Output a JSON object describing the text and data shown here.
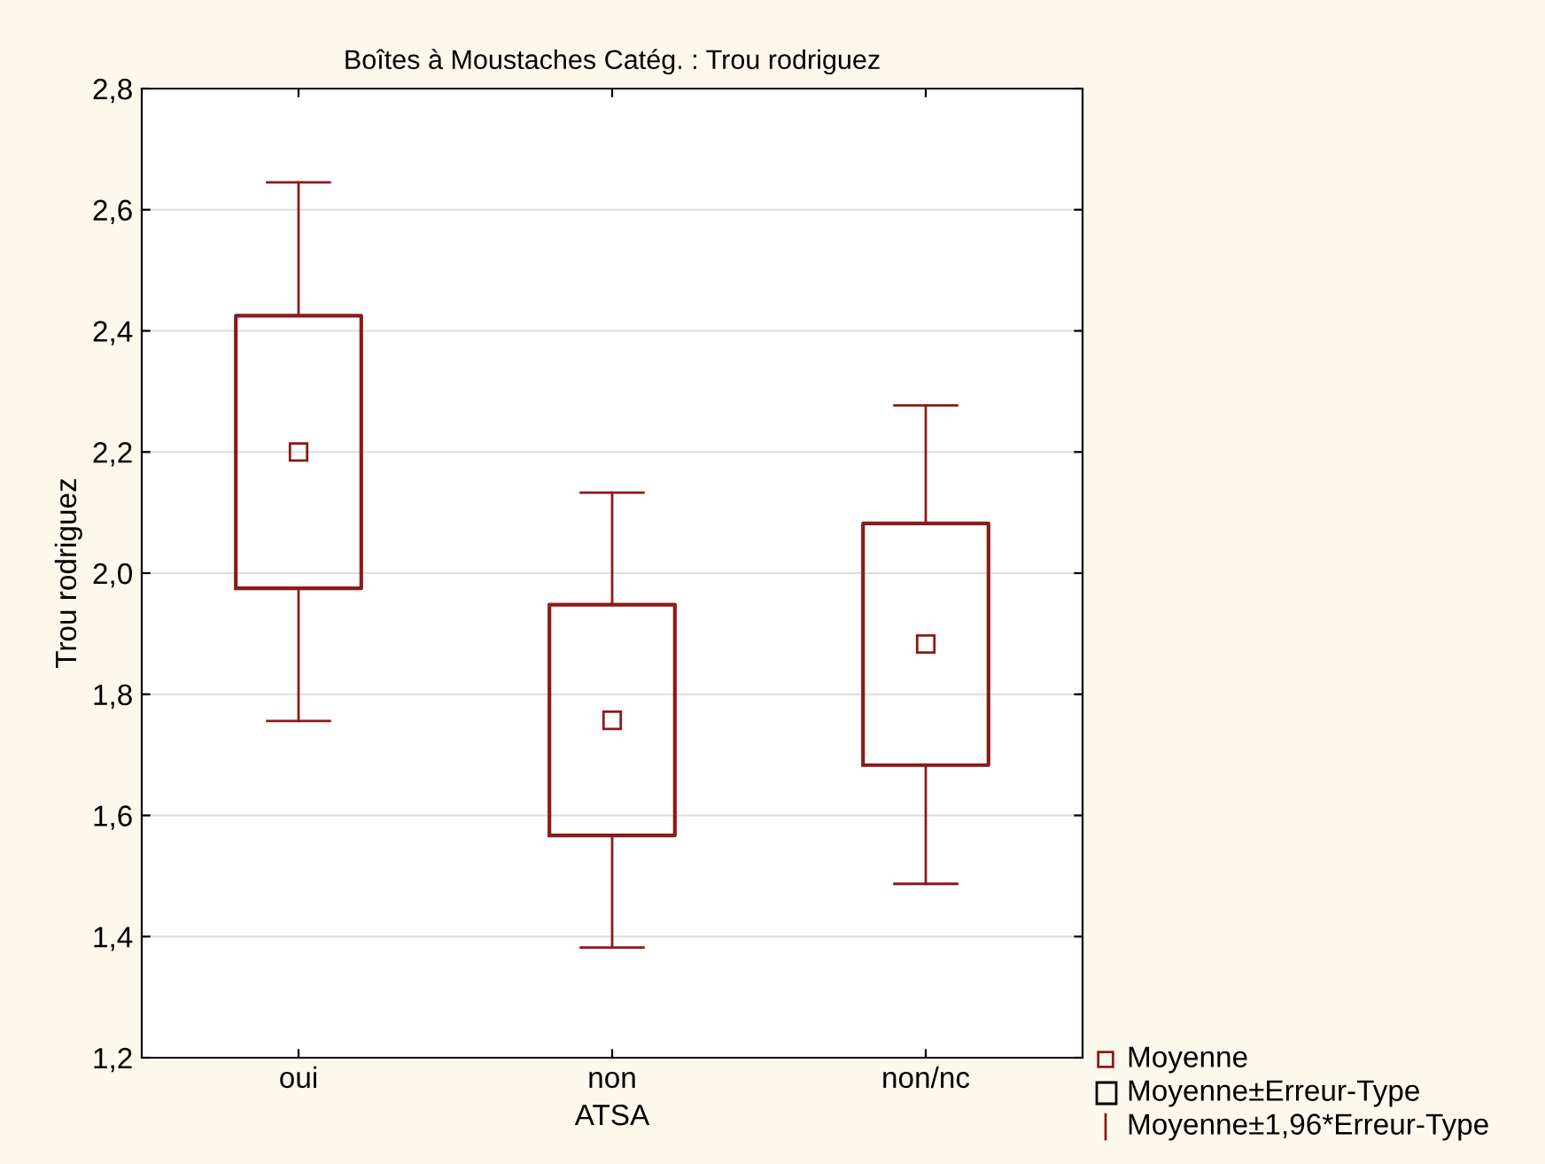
{
  "chart_data": {
    "type": "box",
    "title": "Boîtes à Moustaches Catég. : Trou rodriguez",
    "xlabel": "ATSA",
    "ylabel": "Trou rodriguez",
    "categories": [
      "oui",
      "non",
      "non/nc"
    ],
    "series": [
      {
        "color": "#8b1a1a",
        "boxes": [
          {
            "low": 1.756,
            "q1": 1.975,
            "median": 2.2,
            "q3": 2.425,
            "high": 2.645
          },
          {
            "low": 1.382,
            "q1": 1.567,
            "median": 1.757,
            "q3": 1.948,
            "high": 2.133
          },
          {
            "low": 1.487,
            "q1": 1.683,
            "median": 1.883,
            "q3": 2.082,
            "high": 2.277
          }
        ]
      }
    ],
    "ylim": [
      1.2,
      2.8
    ],
    "yticks": [
      {
        "value": 1.2,
        "label": "1,2"
      },
      {
        "value": 1.4,
        "label": "1,4"
      },
      {
        "value": 1.6,
        "label": "1,6"
      },
      {
        "value": 1.8,
        "label": "1,8"
      },
      {
        "value": 2.0,
        "label": "2,0"
      },
      {
        "value": 2.2,
        "label": "2,2"
      },
      {
        "value": 2.4,
        "label": "2,4"
      },
      {
        "value": 2.6,
        "label": "2,6"
      },
      {
        "value": 2.8,
        "label": "2,8"
      }
    ],
    "grid": "y",
    "marker": "square",
    "annotations": [
      "Moyenne",
      "Moyenne±Erreur-Type",
      "Moyenne±1,96*Erreur-Type"
    ]
  }
}
